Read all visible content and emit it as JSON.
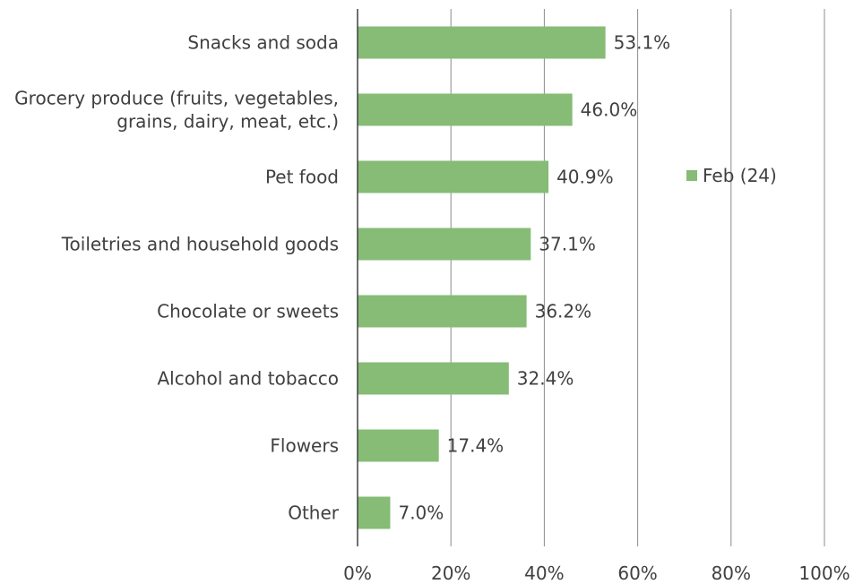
{
  "chart_data": {
    "type": "bar",
    "orientation": "horizontal",
    "categories": [
      [
        "Snacks and soda"
      ],
      [
        "Grocery produce (fruits, vegetables,",
        "grains, dairy, meat, etc.)"
      ],
      [
        "Pet food"
      ],
      [
        "Toiletries and household goods"
      ],
      [
        "Chocolate or sweets"
      ],
      [
        "Alcohol and tobacco"
      ],
      [
        "Flowers"
      ],
      [
        "Other"
      ]
    ],
    "series": [
      {
        "name": "Feb (24)",
        "color": "#86bc76",
        "values": [
          53.1,
          46.0,
          40.9,
          37.1,
          36.2,
          32.4,
          17.4,
          7.0
        ],
        "labels": [
          "53.1%",
          "46.0%",
          "40.9%",
          "37.1%",
          "36.2%",
          "32.4%",
          "17.4%",
          "7.0%"
        ]
      }
    ],
    "xlim": [
      0,
      100
    ],
    "xticks": [
      0,
      20,
      40,
      60,
      80,
      100
    ],
    "xtick_labels": [
      "0%",
      "20%",
      "40%",
      "60%",
      "80%",
      "100%"
    ],
    "grid": "vertical",
    "legend": "right"
  }
}
